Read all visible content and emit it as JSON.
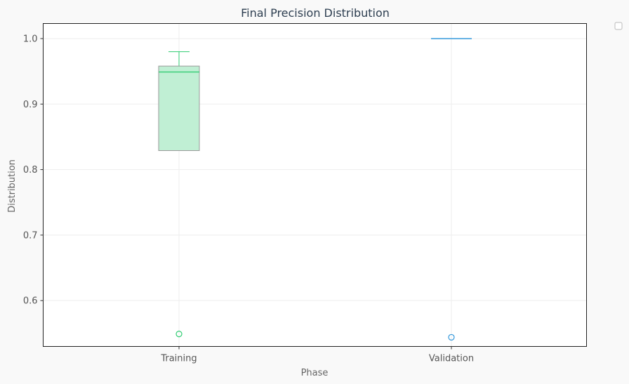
{
  "chart_data": {
    "type": "box",
    "title": "Final Precision Distribution",
    "xlabel": "Phase",
    "ylabel": "Distribution",
    "categories": [
      "Training",
      "Validation"
    ],
    "ylim": [
      0.53,
      1.023
    ],
    "yticks": [
      0.6,
      0.7,
      0.8,
      0.9,
      1.0
    ],
    "ytick_labels": [
      "0.6",
      "0.7",
      "0.8",
      "0.9",
      "1.0"
    ],
    "grid": true,
    "legend": "top-right, empty",
    "boxes": [
      {
        "category": "Training",
        "whisker_low": 0.829,
        "q1": 0.829,
        "median": 0.949,
        "q3": 0.958,
        "whisker_high": 0.98,
        "outliers": [
          0.549
        ],
        "color": "#2ecc71",
        "fill": "#c0efd4"
      },
      {
        "category": "Validation",
        "whisker_low": 1.0,
        "q1": 1.0,
        "median": 1.0,
        "q3": 1.0,
        "whisker_high": 1.0,
        "outliers": [
          0.544
        ],
        "color": "#3498db",
        "fill": "#c6e1f5"
      }
    ]
  }
}
